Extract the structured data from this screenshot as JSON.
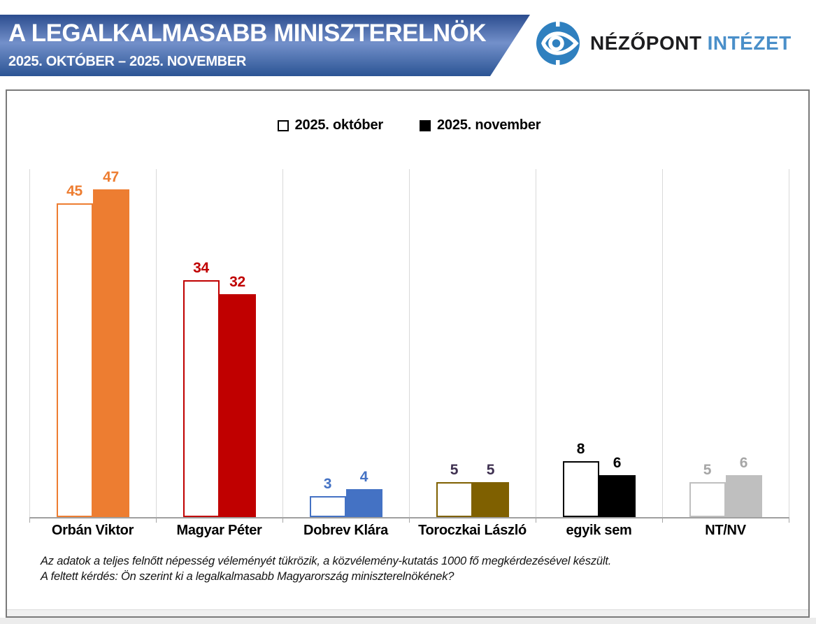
{
  "header": {
    "title": "A LEGALKALMASABB MINISZTERELNÖK",
    "subtitle": "2025. OKTÓBER – 2025. NOVEMBER",
    "banner_gradient": [
      "#2b4c8e",
      "#7390ca",
      "#2b5494"
    ],
    "logo": {
      "brand_dark": "NÉZŐPONT",
      "brand_blue": "INTÉZET",
      "icon": "eye-in-circle-icon",
      "icon_color": "#2f80bf",
      "blue_text_color": "#4a8fc9"
    }
  },
  "legend": {
    "items": [
      {
        "label": "2025. október",
        "swatch": "outline"
      },
      {
        "label": "2025. november",
        "swatch": "solid"
      }
    ]
  },
  "chart_data": {
    "type": "bar",
    "title": "A legalkalmasabb miniszterelnök, 2025. október – 2025. november",
    "categories": [
      "Orbán Viktor",
      "Magyar Péter",
      "Dobrev Klára",
      "Toroczkai László",
      "egyik sem",
      "NT/NV"
    ],
    "series": [
      {
        "name": "2025. október",
        "style": "outline",
        "values": [
          45,
          34,
          3,
          5,
          8,
          5
        ]
      },
      {
        "name": "2025. november",
        "style": "solid",
        "values": [
          47,
          32,
          4,
          5,
          6,
          6
        ]
      }
    ],
    "category_colors": [
      "#ED7D31",
      "#C00000",
      "#4472C4",
      "#7F6000",
      "#000000",
      "#BFBFBF"
    ],
    "value_label_colors": [
      "#ED7D31",
      "#C00000",
      "#4472C4",
      "#3F3151",
      "#000000",
      "#A6A6A6"
    ],
    "ylim": [
      0,
      61
    ],
    "xlabel": "",
    "ylabel": "",
    "grid": "vertical-category-separators-only",
    "gridline_color": "#D9D9D9",
    "axis_color": "#A6A6A6",
    "legend_position": "top-center",
    "unit": "percent"
  },
  "footnote": {
    "line1": "Az adatok a teljes felnőtt népesség véleményét tükrözik, a közvélemény-kutatás 1000 fő megkérdezésével készült.",
    "line2": "A feltett kérdés: Ön szerint ki a legalkalmasabb Magyarország miniszterelnökének?"
  }
}
